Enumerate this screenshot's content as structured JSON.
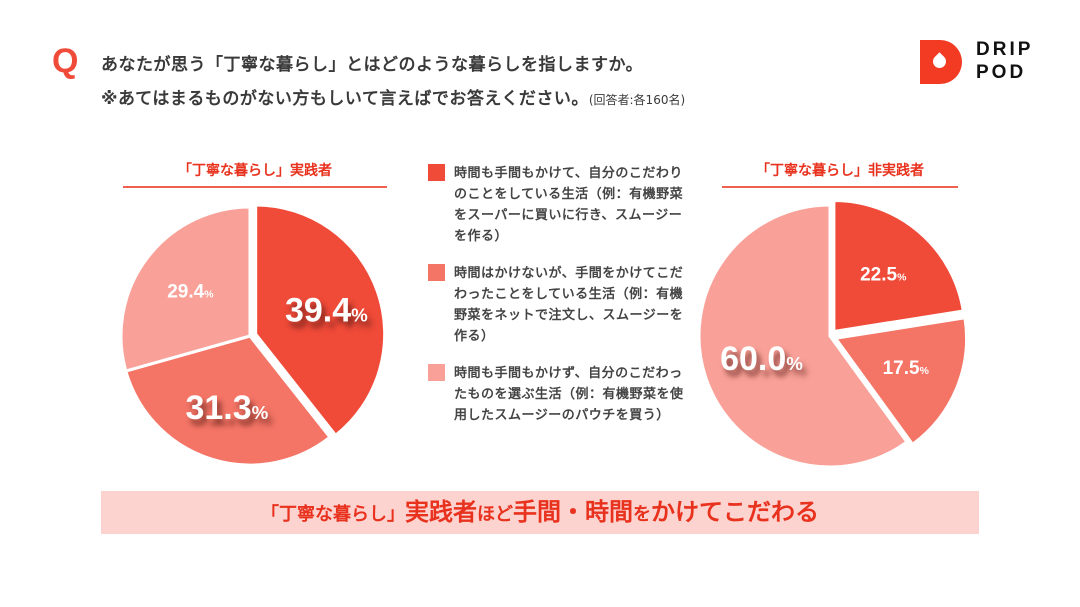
{
  "question": {
    "marker": "Q",
    "line1": "あなたが思う「丁寧な暮らし」とはどのような暮らしを指しますか。",
    "line2": "※あてはまるものがない方もしいて言えばでお答えください。",
    "note": "(回答者:各160名)"
  },
  "logo": {
    "line1": "DRIP",
    "line2": "POD"
  },
  "legend": [
    {
      "label": "時間も手間もかけて、自分のこだわりのことをしている生活（例：有機野菜をスーパーに買いに行き、スムージーを作る）",
      "color": "#f04a38"
    },
    {
      "label": "時間はかけないが、手間をかけてこだわったことをしている生活（例：有機野菜をネットで注文し、スムージーを作る）",
      "color": "#f47566"
    },
    {
      "label": "時間も手間もかけず、自分のこだわったものを選ぶ生活（例：有機野菜を使用したスムージーのパウチを買う）",
      "color": "#f9a198"
    }
  ],
  "banner": {
    "p1": "「丁寧な暮らし」",
    "p2": "実践者",
    "p3": "ほど",
    "p4": "手間・時間",
    "p5": "を",
    "p6": "かけてこだわる"
  },
  "chart_data": [
    {
      "type": "pie",
      "title": "「丁寧な暮らし」実践者",
      "categories": [
        "時間も手間もかけて",
        "時間はかけないが手間をかけて",
        "時間も手間もかけず"
      ],
      "values": [
        39.4,
        31.3,
        29.4
      ],
      "labels": [
        "39.4",
        "31.3",
        "29.4"
      ],
      "unit": "%",
      "exploded": [
        true,
        false,
        false
      ]
    },
    {
      "type": "pie",
      "title": "「丁寧な暮らし」非実践者",
      "categories": [
        "時間も手間もかけて",
        "時間はかけないが手間をかけて",
        "時間も手間もかけず"
      ],
      "values": [
        22.5,
        17.5,
        60.0
      ],
      "labels": [
        "22.5",
        "17.5",
        "60.0"
      ],
      "unit": "%",
      "exploded": [
        true,
        true,
        false
      ]
    }
  ]
}
